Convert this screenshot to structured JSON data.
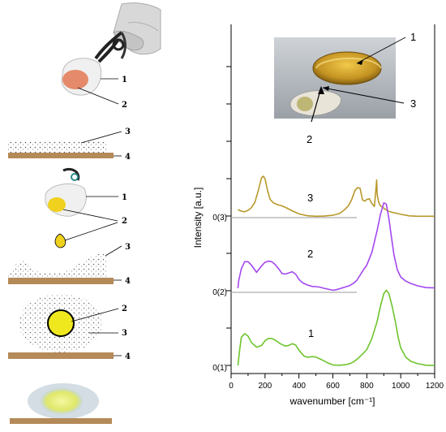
{
  "schematic": {
    "step1_labels": [
      "1",
      "2"
    ],
    "step2_labels": [
      "3",
      "4"
    ],
    "step3_labels": [
      "1",
      "2"
    ],
    "step4_labels": [
      "3",
      "4"
    ],
    "step5_labels": [
      "2",
      "3",
      "4"
    ]
  },
  "photo_labels": [
    "1",
    "3",
    "2"
  ],
  "colors": {
    "series_3": "#b8982a",
    "series_2": "#a347f0",
    "series_1": "#6ec42c",
    "substrate": "#b48a58",
    "nanoparticle": "#f0d21e",
    "hand": "#cfcfcf"
  },
  "chart_data": {
    "type": "line",
    "xlabel": "wavenumber [cm⁻¹]",
    "ylabel": "Intensity [a.u.]",
    "xlim": [
      0,
      1200
    ],
    "xticks": [
      "0",
      "200",
      "400",
      "600",
      "800",
      "1000",
      "1200"
    ],
    "baseline_labels": [
      "0(1)",
      "0(2)",
      "0(3)"
    ],
    "series": [
      {
        "name": "3",
        "x": [
          40,
          60,
          80,
          100,
          120,
          140,
          160,
          180,
          190,
          200,
          215,
          230,
          250,
          275,
          300,
          330,
          360,
          400,
          450,
          500,
          550,
          600,
          640,
          670,
          690,
          710,
          730,
          745,
          760,
          775,
          790,
          800,
          815,
          830,
          845,
          855,
          858,
          861,
          870,
          880,
          900,
          925,
          950,
          1000,
          1050,
          1100,
          1150,
          1200
        ],
        "y": [
          0.68,
          0.55,
          0.5,
          0.62,
          0.85,
          1.3,
          2.3,
          3.4,
          3.52,
          3.3,
          2.3,
          1.55,
          1.25,
          1.1,
          1.0,
          0.8,
          0.58,
          0.32,
          0.16,
          0.12,
          0.13,
          0.2,
          0.35,
          0.68,
          0.98,
          1.5,
          2.3,
          2.55,
          2.5,
          1.5,
          1.4,
          1.55,
          1.6,
          1.2,
          0.95,
          2.6,
          3.2,
          2.0,
          1.3,
          1.0,
          0.8,
          0.55,
          0.45,
          0.28,
          0.15,
          0.12,
          0.12,
          0.12
        ]
      },
      {
        "name": "2",
        "x": [
          40,
          45,
          60,
          80,
          100,
          120,
          150,
          180,
          200,
          220,
          240,
          260,
          280,
          300,
          320,
          340,
          360,
          380,
          400,
          420,
          450,
          480,
          500,
          520,
          550,
          580,
          600,
          620,
          650,
          680,
          700,
          720,
          740,
          760,
          780,
          800,
          830,
          860,
          880,
          900,
          915,
          930,
          945,
          960,
          980,
          1000,
          1030,
          1060,
          1100,
          1150,
          1200
        ],
        "y": [
          0.35,
          1.0,
          2.0,
          2.6,
          2.6,
          2.3,
          1.7,
          2.25,
          2.55,
          2.65,
          2.6,
          2.35,
          2.0,
          1.6,
          1.55,
          1.65,
          1.75,
          1.55,
          1.1,
          0.82,
          0.62,
          0.5,
          0.48,
          0.45,
          0.34,
          0.24,
          0.18,
          0.22,
          0.35,
          0.48,
          0.58,
          0.75,
          1.0,
          1.45,
          1.9,
          2.3,
          3.4,
          5.2,
          6.6,
          7.6,
          7.5,
          6.3,
          4.7,
          3.2,
          1.9,
          1.3,
          0.95,
          0.75,
          0.55,
          0.4,
          0.38
        ]
      },
      {
        "name": "1",
        "x": [
          40,
          50,
          60,
          80,
          100,
          120,
          150,
          180,
          200,
          220,
          240,
          260,
          290,
          320,
          340,
          360,
          380,
          400,
          430,
          450,
          480,
          500,
          530,
          570,
          600,
          640,
          680,
          700,
          720,
          750,
          780,
          800,
          830,
          860,
          880,
          900,
          915,
          930,
          950,
          970,
          985,
          1000,
          1030,
          1060,
          1100,
          1150,
          1200
        ],
        "y": [
          0.2,
          1.5,
          2.6,
          2.9,
          2.7,
          2.15,
          1.75,
          1.9,
          2.3,
          2.5,
          2.5,
          2.35,
          2.05,
          1.85,
          1.9,
          2.05,
          1.95,
          1.5,
          1.0,
          0.9,
          0.95,
          0.92,
          0.72,
          0.42,
          0.25,
          0.22,
          0.28,
          0.36,
          0.5,
          0.82,
          1.25,
          1.55,
          2.5,
          3.9,
          5.2,
          6.3,
          6.6,
          6.3,
          5.2,
          3.8,
          2.6,
          1.7,
          0.9,
          0.55,
          0.35,
          0.22,
          0.2
        ]
      }
    ],
    "annotations": [
      "1",
      "2",
      "3"
    ],
    "grid": false,
    "legend": "none"
  }
}
